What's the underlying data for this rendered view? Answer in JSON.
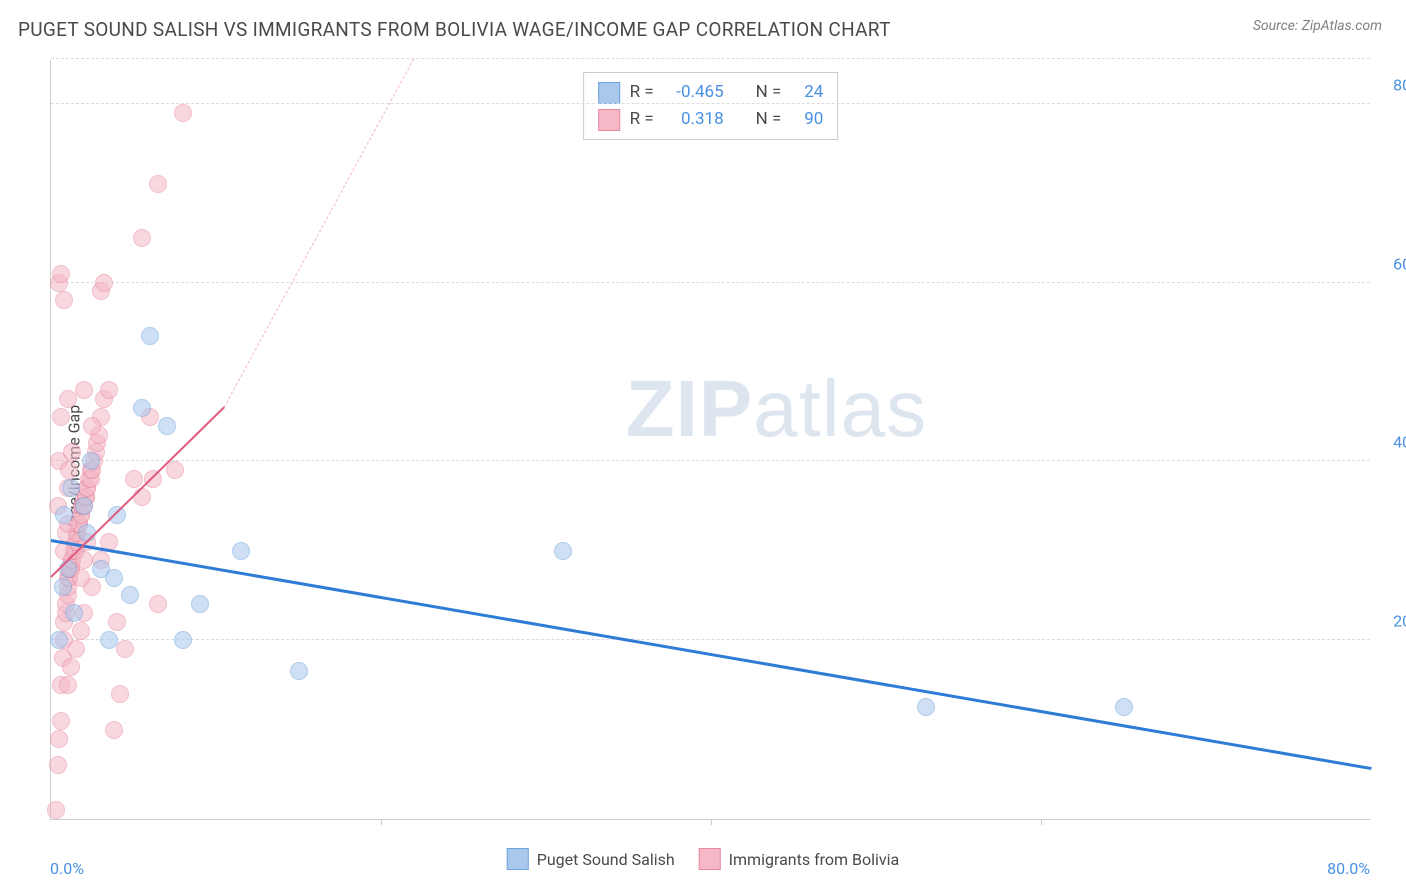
{
  "header": {
    "title": "PUGET SOUND SALISH VS IMMIGRANTS FROM BOLIVIA WAGE/INCOME GAP CORRELATION CHART",
    "source": "Source: ZipAtlas.com"
  },
  "watermark": {
    "bold_part": "ZIP",
    "light_part": "atlas"
  },
  "chart": {
    "type": "scatter",
    "ylabel": "Wage/Income Gap",
    "background_color": "#ffffff",
    "grid_color": "#dcdcdc",
    "axis_color": "#cccccc",
    "tick_color": "#4a90e2",
    "xlim": [
      0,
      80
    ],
    "ylim": [
      0,
      85
    ],
    "x_ticks_labeled": [
      0,
      80
    ],
    "x_ticks_minor": [
      20,
      40,
      60
    ],
    "y_ticks": [
      20,
      40,
      60,
      80
    ],
    "x_tick_labels": {
      "min": "0.0%",
      "max": "80.0%"
    },
    "y_tick_labels": [
      "20.0%",
      "40.0%",
      "60.0%",
      "80.0%"
    ],
    "marker_radius": 9,
    "marker_opacity": 0.55,
    "series": [
      {
        "name": "Puget Sound Salish",
        "fill": "#a9c8ec",
        "stroke": "#6fa3dd",
        "R": "-0.465",
        "N": "24",
        "trend": {
          "x1": 0,
          "y1": 31,
          "x2": 80,
          "y2": 5.5,
          "color": "#2e7cd6",
          "width": 3,
          "dashed": false
        },
        "points": [
          [
            0.5,
            20
          ],
          [
            0.7,
            26
          ],
          [
            0.8,
            34
          ],
          [
            1.0,
            28
          ],
          [
            1.2,
            37
          ],
          [
            1.4,
            23
          ],
          [
            2.0,
            35
          ],
          [
            2.4,
            40
          ],
          [
            3.0,
            28
          ],
          [
            3.5,
            20
          ],
          [
            4.0,
            34
          ],
          [
            4.8,
            25
          ],
          [
            5.5,
            46
          ],
          [
            6.0,
            54
          ],
          [
            7.0,
            44
          ],
          [
            8.0,
            20
          ],
          [
            9.0,
            24
          ],
          [
            11.5,
            30
          ],
          [
            15.0,
            16.5
          ],
          [
            31.0,
            30
          ],
          [
            53.0,
            12.5
          ],
          [
            65.0,
            12.5
          ],
          [
            2.2,
            32
          ],
          [
            3.8,
            27
          ]
        ]
      },
      {
        "name": "Immigrants from Bolivia",
        "fill": "#f4b8c6",
        "stroke": "#e88aa2",
        "R": "0.318",
        "N": "90",
        "trend": {
          "x1": 0,
          "y1": 27,
          "x2": 10.5,
          "y2": 46,
          "color": "#e05a7d",
          "width": 2.5,
          "dashed": false
        },
        "trend_ext": {
          "x1": 10.5,
          "y1": 46,
          "x2": 22,
          "y2": 85,
          "color": "#f4b8c6",
          "width": 1,
          "dashed": true
        },
        "points": [
          [
            0.3,
            1
          ],
          [
            0.4,
            6
          ],
          [
            0.5,
            9
          ],
          [
            0.6,
            11
          ],
          [
            0.6,
            15
          ],
          [
            0.7,
            18
          ],
          [
            0.8,
            20
          ],
          [
            0.8,
            22
          ],
          [
            0.9,
            23
          ],
          [
            0.9,
            24
          ],
          [
            1.0,
            25
          ],
          [
            1.0,
            26
          ],
          [
            1.0,
            27
          ],
          [
            1.1,
            27
          ],
          [
            1.1,
            28
          ],
          [
            1.2,
            28
          ],
          [
            1.2,
            28
          ],
          [
            1.3,
            29
          ],
          [
            1.3,
            29
          ],
          [
            1.4,
            30
          ],
          [
            1.4,
            30
          ],
          [
            1.5,
            30
          ],
          [
            1.5,
            31
          ],
          [
            1.5,
            31
          ],
          [
            1.6,
            32
          ],
          [
            1.6,
            32
          ],
          [
            1.7,
            33
          ],
          [
            1.7,
            33
          ],
          [
            1.8,
            34
          ],
          [
            1.8,
            34
          ],
          [
            1.9,
            35
          ],
          [
            1.9,
            35
          ],
          [
            2.0,
            35
          ],
          [
            2.0,
            36
          ],
          [
            2.1,
            36
          ],
          [
            2.1,
            36
          ],
          [
            2.2,
            37
          ],
          [
            2.2,
            37
          ],
          [
            2.3,
            38
          ],
          [
            2.4,
            38
          ],
          [
            2.4,
            39
          ],
          [
            2.5,
            39
          ],
          [
            2.6,
            40
          ],
          [
            2.7,
            41
          ],
          [
            2.8,
            42
          ],
          [
            2.9,
            43
          ],
          [
            3.0,
            45
          ],
          [
            3.2,
            47
          ],
          [
            3.5,
            48
          ],
          [
            1.0,
            15
          ],
          [
            1.2,
            17
          ],
          [
            1.5,
            19
          ],
          [
            1.8,
            21
          ],
          [
            2.0,
            23
          ],
          [
            2.5,
            26
          ],
          [
            3.0,
            29
          ],
          [
            3.5,
            31
          ],
          [
            4.0,
            22
          ],
          [
            4.5,
            19
          ],
          [
            5.0,
            38
          ],
          [
            5.5,
            36
          ],
          [
            6.0,
            45
          ],
          [
            6.2,
            38
          ],
          [
            7.5,
            39
          ],
          [
            6.5,
            24
          ],
          [
            3.8,
            10
          ],
          [
            4.2,
            14
          ],
          [
            1.0,
            47
          ],
          [
            0.8,
            58
          ],
          [
            0.5,
            60
          ],
          [
            0.6,
            61
          ],
          [
            2.5,
            44
          ],
          [
            2.0,
            48
          ],
          [
            3.0,
            59
          ],
          [
            3.2,
            60
          ],
          [
            5.5,
            65
          ],
          [
            6.5,
            71
          ],
          [
            8.0,
            79
          ],
          [
            0.4,
            35
          ],
          [
            0.5,
            40
          ],
          [
            0.6,
            45
          ],
          [
            1.0,
            37
          ],
          [
            1.1,
            39
          ],
          [
            1.3,
            41
          ],
          [
            0.8,
            30
          ],
          [
            0.9,
            32
          ],
          [
            1.0,
            33
          ],
          [
            1.8,
            27
          ],
          [
            2.0,
            29
          ],
          [
            2.2,
            31
          ]
        ]
      }
    ],
    "legend_top": {
      "r_label": "R =",
      "n_label": "N ="
    },
    "legend_bottom_labels": [
      "Puget Sound Salish",
      "Immigrants from Bolivia"
    ]
  }
}
